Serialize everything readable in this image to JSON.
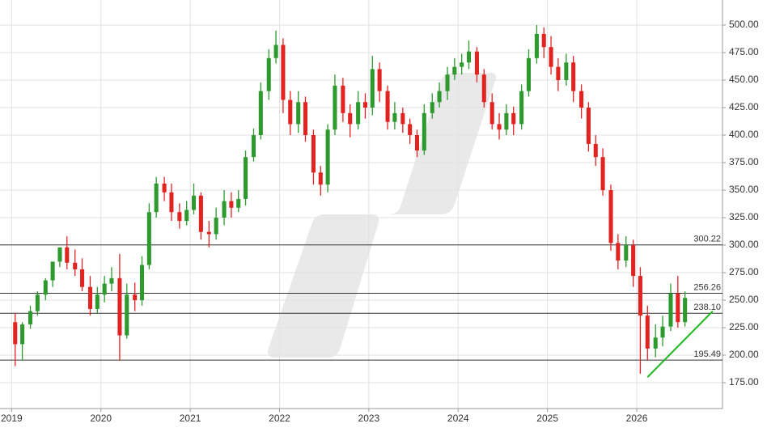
{
  "chart_data": {
    "type": "candlestick",
    "x": [
      2019.04,
      2019.12,
      2019.21,
      2019.29,
      2019.38,
      2019.46,
      2019.54,
      2019.62,
      2019.71,
      2019.79,
      2019.88,
      2019.96,
      2020.04,
      2020.12,
      2020.21,
      2020.29,
      2020.38,
      2020.46,
      2020.54,
      2020.62,
      2020.71,
      2020.79,
      2020.88,
      2020.96,
      2021.04,
      2021.12,
      2021.21,
      2021.29,
      2021.38,
      2021.46,
      2021.54,
      2021.62,
      2021.71,
      2021.79,
      2021.88,
      2021.96,
      2022.04,
      2022.12,
      2022.21,
      2022.29,
      2022.38,
      2022.46,
      2022.54,
      2022.62,
      2022.71,
      2022.79,
      2022.88,
      2022.96,
      2023.04,
      2023.12,
      2023.21,
      2023.29,
      2023.38,
      2023.46,
      2023.54,
      2023.62,
      2023.71,
      2023.79,
      2023.88,
      2023.96,
      2024.04,
      2024.12,
      2024.21,
      2024.29,
      2024.38,
      2024.46,
      2024.54,
      2024.62,
      2024.71,
      2024.79,
      2024.88,
      2024.96,
      2025.04,
      2025.12,
      2025.21,
      2025.29,
      2025.38,
      2025.46,
      2025.54,
      2025.62,
      2025.71,
      2025.79,
      2025.88,
      2025.96,
      2026.04,
      2026.12,
      2026.21,
      2026.29,
      2026.38,
      2026.46,
      2026.54
    ],
    "open": [
      230,
      210,
      228,
      240,
      255,
      268,
      285,
      298,
      284,
      278,
      262,
      242,
      255,
      265,
      270,
      218,
      255,
      250,
      282,
      330,
      356,
      348,
      330,
      322,
      332,
      345,
      312,
      310,
      325,
      340,
      334,
      342,
      380,
      400,
      440,
      470,
      482,
      432,
      410,
      430,
      400,
      366,
      355,
      405,
      445,
      420,
      410,
      430,
      425,
      460,
      440,
      412,
      420,
      410,
      400,
      386,
      420,
      430,
      440,
      455,
      462,
      466,
      476,
      455,
      430,
      410,
      405,
      420,
      410,
      440,
      470,
      492,
      480,
      462,
      450,
      466,
      440,
      425,
      392,
      380,
      350,
      302,
      286,
      300,
      272,
      236,
      206,
      216,
      226,
      256,
      230
    ],
    "high": [
      238,
      230,
      245,
      258,
      270,
      282,
      296,
      308,
      296,
      288,
      272,
      262,
      272,
      280,
      292,
      265,
      266,
      290,
      338,
      362,
      362,
      356,
      338,
      340,
      356,
      348,
      322,
      334,
      350,
      348,
      350,
      386,
      406,
      448,
      478,
      495,
      488,
      440,
      440,
      435,
      405,
      372,
      410,
      455,
      452,
      428,
      440,
      438,
      472,
      466,
      445,
      430,
      425,
      415,
      405,
      428,
      438,
      448,
      462,
      470,
      474,
      486,
      480,
      460,
      438,
      420,
      428,
      426,
      446,
      478,
      500,
      498,
      490,
      470,
      474,
      472,
      446,
      430,
      400,
      388,
      355,
      310,
      308,
      305,
      280,
      245,
      228,
      236,
      265,
      272,
      258
    ],
    "low": [
      190,
      195,
      224,
      236,
      250,
      262,
      280,
      278,
      272,
      258,
      236,
      238,
      248,
      258,
      195,
      215,
      240,
      245,
      278,
      325,
      340,
      322,
      315,
      318,
      328,
      305,
      298,
      305,
      318,
      325,
      330,
      336,
      376,
      396,
      432,
      465,
      420,
      400,
      402,
      394,
      355,
      345,
      348,
      400,
      412,
      398,
      405,
      415,
      418,
      430,
      405,
      405,
      402,
      392,
      380,
      382,
      415,
      425,
      432,
      450,
      455,
      460,
      448,
      425,
      405,
      396,
      400,
      400,
      405,
      435,
      465,
      470,
      455,
      440,
      445,
      430,
      415,
      385,
      372,
      345,
      295,
      278,
      280,
      262,
      183,
      195,
      198,
      208,
      222,
      225,
      226
    ],
    "close": [
      210,
      228,
      240,
      255,
      268,
      285,
      298,
      284,
      278,
      262,
      242,
      255,
      265,
      270,
      218,
      255,
      250,
      282,
      330,
      356,
      348,
      330,
      322,
      332,
      345,
      312,
      310,
      325,
      340,
      334,
      342,
      380,
      400,
      440,
      470,
      482,
      432,
      410,
      430,
      400,
      366,
      355,
      405,
      445,
      420,
      410,
      430,
      425,
      460,
      440,
      412,
      420,
      410,
      400,
      386,
      420,
      430,
      440,
      455,
      462,
      466,
      476,
      455,
      430,
      410,
      405,
      420,
      410,
      440,
      470,
      492,
      480,
      462,
      450,
      466,
      440,
      425,
      392,
      380,
      350,
      302,
      286,
      300,
      272,
      236,
      206,
      216,
      226,
      256,
      230,
      252
    ],
    "up_color": "#2e9a2e",
    "down_color": "#e3231f",
    "xlim": [
      2018.87,
      2026.96
    ],
    "xticks": [
      2019,
      2020,
      2021,
      2022,
      2023,
      2024,
      2025,
      2026
    ],
    "ylim": [
      151.5,
      522.8
    ],
    "yticks": [
      {
        "value": 175,
        "label": "175.00"
      },
      {
        "value": 200,
        "label": "200.00"
      },
      {
        "value": 225,
        "label": "225.00"
      },
      {
        "value": 250,
        "label": "250.00"
      },
      {
        "value": 275,
        "label": "275.00"
      },
      {
        "value": 300,
        "label": "300.00"
      },
      {
        "value": 325,
        "label": "325.00"
      },
      {
        "value": 350,
        "label": "350.00"
      },
      {
        "value": 375,
        "label": "375.00"
      },
      {
        "value": 400,
        "label": "400.00"
      },
      {
        "value": 425,
        "label": "425.00"
      },
      {
        "value": 450,
        "label": "450.00"
      },
      {
        "value": 475,
        "label": "475.00"
      },
      {
        "value": 500,
        "label": "500.00"
      }
    ],
    "grid": true,
    "levels": [
      300.22,
      256.26,
      {
        "value": 238.1,
        "label": "238.10"
      },
      195.49
    ],
    "trendline": {
      "x": [
        2026.12,
        2026.85
      ],
      "y": [
        180,
        240
      ],
      "color": "#22b822"
    }
  }
}
